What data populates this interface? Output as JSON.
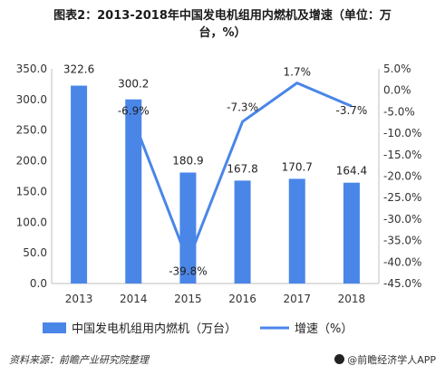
{
  "title": {
    "line1": "图表2：2013-2018年中国发电机组用内燃机及增速（单位：万",
    "line2": "台，%）"
  },
  "chart_data": {
    "type": "bar",
    "categories": [
      "2013",
      "2014",
      "2015",
      "2016",
      "2017",
      "2018"
    ],
    "series": [
      {
        "name": "中国发电机组用内燃机（万台）",
        "type": "bar",
        "axis": "left",
        "values": [
          322.6,
          300.2,
          180.9,
          167.8,
          170.7,
          164.4
        ],
        "labels": [
          "322.6",
          "300.2",
          "180.9",
          "167.8",
          "170.7",
          "164.4"
        ]
      },
      {
        "name": "增速（%）",
        "type": "line",
        "axis": "right",
        "values": [
          null,
          -6.9,
          -39.8,
          -7.3,
          1.7,
          -3.7
        ],
        "labels": [
          "",
          "-6.9%",
          "-39.8%",
          "-7.3%",
          "1.7%",
          "-3.7%"
        ]
      }
    ],
    "yleft": {
      "min": 0,
      "max": 350,
      "step": 50,
      "ticks": [
        "0.0",
        "50.0",
        "100.0",
        "150.0",
        "200.0",
        "250.0",
        "300.0",
        "350.0"
      ]
    },
    "yright": {
      "min": -45,
      "max": 5,
      "step": 5,
      "ticks": [
        "5.0%",
        "0.0%",
        "-5.0%",
        "-10.0%",
        "-15.0%",
        "-20.0%",
        "-25.0%",
        "-30.0%",
        "-35.0%",
        "-40.0%",
        "-45.0%"
      ]
    },
    "legend_position": "bottom",
    "grid": false,
    "colors": {
      "bar": "#4a86e8",
      "line": "#4a86e8"
    }
  },
  "footer": {
    "source": "资料来源：前瞻产业研究院整理",
    "brand": "@前瞻经济学人APP"
  }
}
